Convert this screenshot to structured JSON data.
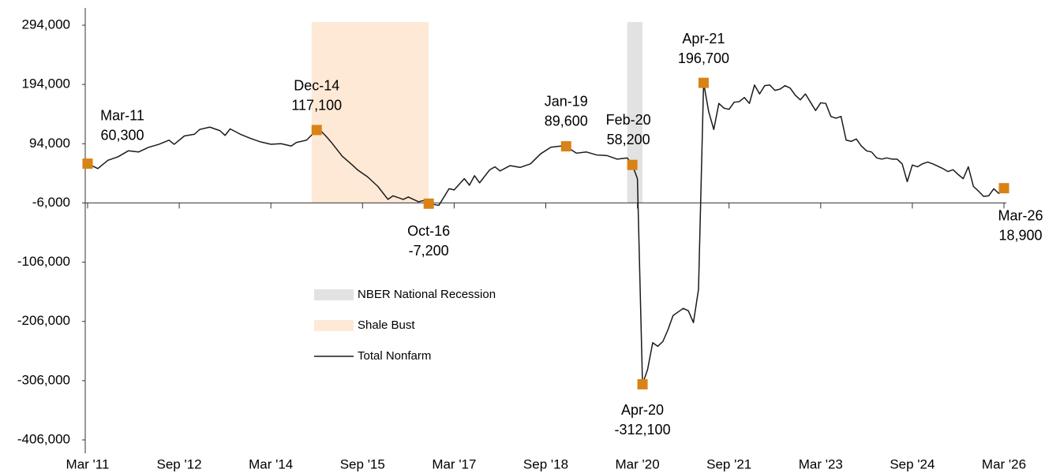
{
  "chart_data": {
    "type": "line",
    "ylim": [
      -406000,
      294000
    ],
    "yticks": [
      {
        "value": 294000,
        "label": "294,000"
      },
      {
        "value": 194000,
        "label": "194,000"
      },
      {
        "value": 94000,
        "label": "94,000"
      },
      {
        "value": -6000,
        "label": "-6,000"
      },
      {
        "value": -106000,
        "label": "-106,000"
      },
      {
        "value": -206000,
        "label": "-206,000"
      },
      {
        "value": -306000,
        "label": "-306,000"
      },
      {
        "value": -406000,
        "label": "-406,000"
      }
    ],
    "xlim": [
      "2011-03",
      "2026-03"
    ],
    "xticks": [
      {
        "value": "2011-03",
        "label": "Mar '11"
      },
      {
        "value": "2012-09",
        "label": "Sep '12"
      },
      {
        "value": "2014-03",
        "label": "Mar '14"
      },
      {
        "value": "2015-09",
        "label": "Sep '15"
      },
      {
        "value": "2017-03",
        "label": "Mar '17"
      },
      {
        "value": "2018-09",
        "label": "Sep '18"
      },
      {
        "value": "2020-03",
        "label": "Mar '20"
      },
      {
        "value": "2021-09",
        "label": "Sep '21"
      },
      {
        "value": "2023-03",
        "label": "Mar '23"
      },
      {
        "value": "2024-09",
        "label": "Sep '24"
      },
      {
        "value": "2026-03",
        "label": "Mar '26"
      }
    ],
    "shaded": [
      {
        "name": "NBER National Recession",
        "color": "#e2e2e2",
        "start": "2020-01",
        "end": "2020-04"
      },
      {
        "name": "Shale Bust",
        "color": "#fde9d6",
        "start": "2014-11",
        "end": "2016-10"
      }
    ],
    "series": [
      {
        "name": "Total Nonfarm",
        "color": "#1a1a1a",
        "x": [
          "2011-03",
          "2011-05",
          "2011-07",
          "2011-09",
          "2011-11",
          "2012-01",
          "2012-03",
          "2012-05",
          "2012-07",
          "2012-08",
          "2012-10",
          "2012-12",
          "2013-01",
          "2013-03",
          "2013-05",
          "2013-06",
          "2013-07",
          "2013-09",
          "2013-11",
          "2014-01",
          "2014-03",
          "2014-05",
          "2014-07",
          "2014-08",
          "2014-10",
          "2014-12",
          "2015-01",
          "2015-02",
          "2015-03",
          "2015-05",
          "2015-07",
          "2015-08",
          "2015-10",
          "2015-12",
          "2016-02",
          "2016-03",
          "2016-05",
          "2016-06",
          "2016-08",
          "2016-09",
          "2016-10",
          "2016-12",
          "2017-02",
          "2017-03",
          "2017-05",
          "2017-06",
          "2017-07",
          "2017-08",
          "2017-10",
          "2017-11",
          "2017-12",
          "2018-02",
          "2018-04",
          "2018-06",
          "2018-08",
          "2018-10",
          "2018-12",
          "2019-01",
          "2019-03",
          "2019-05",
          "2019-07",
          "2019-09",
          "2019-11",
          "2020-01",
          "2020-02",
          "2020-03",
          "2020-04",
          "2020-05",
          "2020-06",
          "2020-07",
          "2020-08",
          "2020-09",
          "2020-10",
          "2020-11",
          "2020-12",
          "2021-01",
          "2021-02",
          "2021-03",
          "2021-04",
          "2021-05",
          "2021-06",
          "2021-07",
          "2021-08",
          "2021-09",
          "2021-10",
          "2021-11",
          "2021-12",
          "2022-01",
          "2022-02",
          "2022-03",
          "2022-04",
          "2022-05",
          "2022-06",
          "2022-07",
          "2022-08",
          "2022-09",
          "2022-10",
          "2022-11",
          "2022-12",
          "2023-01",
          "2023-02",
          "2023-03",
          "2023-04",
          "2023-05",
          "2023-06",
          "2023-07",
          "2023-08",
          "2023-09",
          "2023-10",
          "2023-11",
          "2023-12",
          "2024-01",
          "2024-02",
          "2024-03",
          "2024-04",
          "2024-05",
          "2024-06",
          "2024-07",
          "2024-08",
          "2024-09",
          "2024-10",
          "2024-11",
          "2024-12",
          "2025-01",
          "2025-02",
          "2025-03",
          "2025-04",
          "2025-05",
          "2025-06",
          "2025-07",
          "2025-08",
          "2025-09",
          "2025-10",
          "2025-11",
          "2025-12",
          "2026-01",
          "2026-02",
          "2026-03"
        ],
        "values": [
          60300,
          52000,
          66000,
          72000,
          82000,
          80000,
          88000,
          93000,
          100000,
          93000,
          107000,
          110000,
          118000,
          122000,
          116000,
          108000,
          119000,
          110000,
          103000,
          97000,
          93000,
          94000,
          90000,
          96000,
          100000,
          117100,
          114000,
          105000,
          95000,
          73000,
          58000,
          50000,
          38000,
          22000,
          0,
          6000,
          0,
          4000,
          -4000,
          -2000,
          -7200,
          -10000,
          18000,
          16000,
          35000,
          24000,
          40000,
          28000,
          50000,
          55000,
          48000,
          57000,
          54000,
          60000,
          77000,
          88000,
          90000,
          89600,
          78000,
          80000,
          75000,
          74000,
          68000,
          70000,
          58200,
          35000,
          -312100,
          -287000,
          -242000,
          -248000,
          -240000,
          -220000,
          -196000,
          -190000,
          -184000,
          -188000,
          -208000,
          -152000,
          196700,
          148000,
          118000,
          162000,
          154000,
          152000,
          164000,
          165000,
          172000,
          162000,
          193000,
          178000,
          192000,
          193000,
          184000,
          186000,
          192000,
          188000,
          176000,
          168000,
          178000,
          164000,
          150000,
          163000,
          162000,
          140000,
          137000,
          140000,
          100000,
          98000,
          102000,
          90000,
          82000,
          80000,
          70000,
          68000,
          70000,
          68000,
          68000,
          60000,
          30000,
          58000,
          55000,
          60000,
          63000,
          60000,
          56000,
          52000,
          47000,
          50000,
          42000,
          35000,
          55000,
          22000,
          14000,
          5000,
          6000,
          18000,
          10000,
          18900
        ]
      }
    ],
    "marker_color": "#d98216",
    "annotations": [
      {
        "x": "2011-03",
        "label": "Mar-11",
        "value": 60300,
        "value_label": "60,300"
      },
      {
        "x": "2014-12",
        "label": "Dec-14",
        "value": 117100,
        "value_label": "117,100"
      },
      {
        "x": "2016-10",
        "label": "Oct-16",
        "value": -7200,
        "value_label": "-7,200"
      },
      {
        "x": "2019-01",
        "label": "Jan-19",
        "value": 89600,
        "value_label": "89,600"
      },
      {
        "x": "2020-02",
        "label": "Feb-20",
        "value": 58200,
        "value_label": "58,200"
      },
      {
        "x": "2020-04",
        "label": "Apr-20",
        "value": -312100,
        "value_label": "-312,100"
      },
      {
        "x": "2021-04",
        "label": "Apr-21",
        "value": 196700,
        "value_label": "196,700"
      },
      {
        "x": "2026-03",
        "label": "Mar-26",
        "value": 18900,
        "value_label": "18,900"
      }
    ]
  }
}
